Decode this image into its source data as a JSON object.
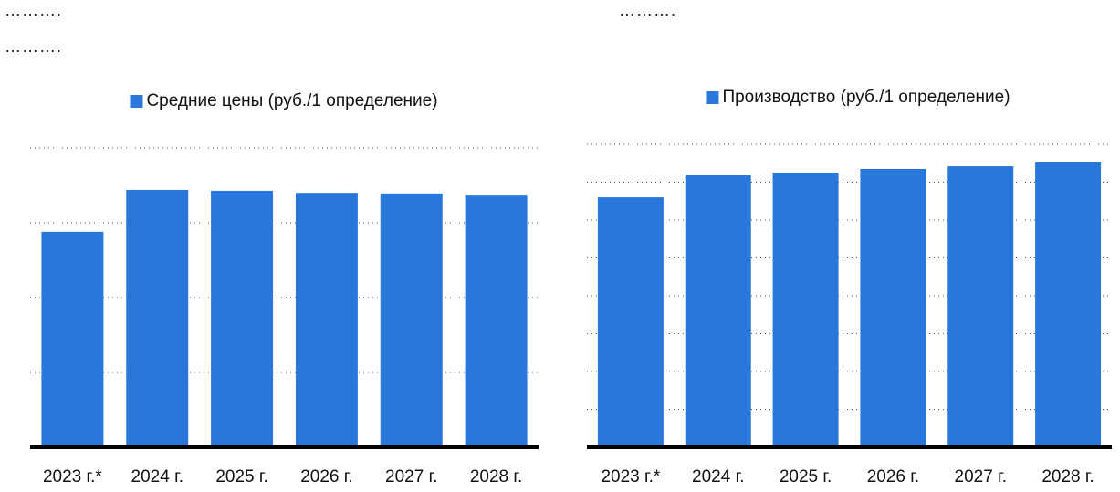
{
  "chart_data": [
    {
      "type": "bar",
      "title": "……….",
      "subtitle": "……….",
      "legend": "Средние цены (руб./1 определение)",
      "color": "#2a77dc",
      "categories": [
        "2023 г.*",
        "2024 г.",
        "2025 г.",
        "2026 г.",
        "2027 г.",
        "2028 г."
      ],
      "values": [
        72,
        86,
        85.7,
        85,
        84.8,
        84.1
      ],
      "ylim": [
        0,
        100
      ],
      "yticks": [
        0,
        25,
        50,
        75,
        100
      ],
      "grid": true
    },
    {
      "type": "bar",
      "title": "……….",
      "legend": "Производство (руб./1 определение)",
      "color": "#2a77dc",
      "categories": [
        "2023 г.*",
        "2024 г.",
        "2025 г.",
        "2026 г.",
        "2027 г.",
        "2028 г."
      ],
      "values": [
        6.6,
        7.18,
        7.25,
        7.35,
        7.42,
        7.52
      ],
      "ylim": [
        0,
        8
      ],
      "yticks": [
        0,
        1,
        2,
        3,
        4,
        5,
        6,
        7,
        8
      ],
      "grid": true
    }
  ]
}
